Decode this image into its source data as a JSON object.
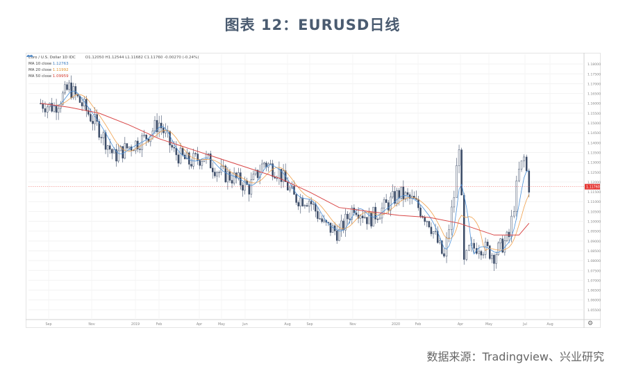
{
  "title": "图表 12：EURUSD日线",
  "source": "数据来源：Tradingview、兴业研究",
  "legend": {
    "symbol": "Euro / U.S. Dollar  1D  IDC",
    "ohlc": "O1.12050  H1.12544  L1.11682  C1.11760  -0.00270 (-0.24%)",
    "ma10_label": "MA 10 close",
    "ma10_value": "1.12763",
    "ma20_label": "MA 20 close",
    "ma20_value": "1.11992",
    "ma50_label": "MA 50 close",
    "ma50_value": "1.09959"
  },
  "price_tag": "1.11760",
  "colors": {
    "candle": "#3a4a66",
    "ma10": "#4a90d9",
    "ma20": "#f0a04b",
    "ma50": "#d94545",
    "price_tag": "#e53935"
  },
  "chart_data": {
    "type": "line",
    "title": "Euro / U.S. Dollar  1D  IDC",
    "ylim": [
      1.05,
      1.185
    ],
    "y_ticks": [
      "1.18000",
      "1.17500",
      "1.17000",
      "1.16500",
      "1.16000",
      "1.15500",
      "1.15000",
      "1.14500",
      "1.14000",
      "1.13500",
      "1.13000",
      "1.12500",
      "1.12000",
      "1.11500",
      "1.11000",
      "1.10500",
      "1.10000",
      "1.09500",
      "1.09000",
      "1.08500",
      "1.08000",
      "1.07500",
      "1.07000",
      "1.06500",
      "1.06000",
      "1.05500"
    ],
    "x_ticks": [
      "Sep",
      "Nov",
      "2019",
      "Feb",
      "Apr",
      "May",
      "Jun",
      "Aug",
      "Sep",
      "Nov",
      "2020",
      "Feb",
      "Apr",
      "May",
      "Jul",
      "Aug"
    ],
    "series": [
      {
        "name": "EURUSD",
        "x": [
          "2018-08-01",
          "2018-08-20",
          "2018-09-10",
          "2018-10-01",
          "2018-10-22",
          "2018-11-12",
          "2018-12-03",
          "2018-12-24",
          "2019-01-14",
          "2019-02-04",
          "2019-02-25",
          "2019-03-18",
          "2019-04-08",
          "2019-04-29",
          "2019-05-20",
          "2019-06-10",
          "2019-07-01",
          "2019-07-22",
          "2019-08-12",
          "2019-09-02",
          "2019-09-23",
          "2019-10-14",
          "2019-11-04",
          "2019-11-25",
          "2019-12-16",
          "2020-01-06",
          "2020-01-27",
          "2020-02-17",
          "2020-03-02",
          "2020-03-09",
          "2020-03-16",
          "2020-03-23",
          "2020-04-06",
          "2020-04-27",
          "2020-05-18",
          "2020-06-01",
          "2020-06-08",
          "2020-06-15"
        ],
        "values": [
          1.16,
          1.158,
          1.168,
          1.158,
          1.147,
          1.133,
          1.138,
          1.142,
          1.15,
          1.135,
          1.13,
          1.133,
          1.125,
          1.122,
          1.117,
          1.13,
          1.125,
          1.112,
          1.111,
          1.098,
          1.094,
          1.108,
          1.101,
          1.107,
          1.114,
          1.11,
          1.1,
          1.081,
          1.113,
          1.14,
          1.078,
          1.085,
          1.088,
          1.083,
          1.092,
          1.125,
          1.132,
          1.118
        ]
      },
      {
        "name": "MA 50 close",
        "x": [
          "2018-08-01",
          "2018-09-10",
          "2018-10-22",
          "2018-12-03",
          "2019-01-14",
          "2019-02-25",
          "2019-04-08",
          "2019-05-20",
          "2019-07-01",
          "2019-08-12",
          "2019-09-23",
          "2019-11-04",
          "2019-12-16",
          "2020-01-27",
          "2020-03-09",
          "2020-04-27",
          "2020-06-01",
          "2020-06-15"
        ],
        "values": [
          1.16,
          1.158,
          1.155,
          1.149,
          1.142,
          1.137,
          1.132,
          1.127,
          1.122,
          1.115,
          1.107,
          1.105,
          1.103,
          1.102,
          1.099,
          1.093,
          1.093,
          1.099
        ]
      }
    ]
  }
}
